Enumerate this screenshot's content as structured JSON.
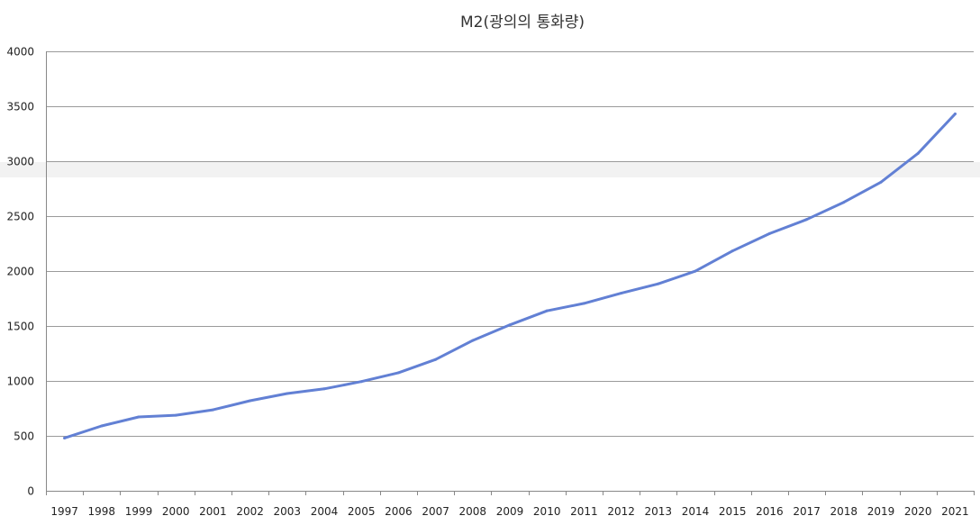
{
  "chart_data": {
    "type": "line",
    "title": "M2(광의의 통화량)",
    "xlabel": "",
    "ylabel": "",
    "ylim": [
      0,
      4000
    ],
    "yticks": [
      0,
      500,
      1000,
      1500,
      2000,
      2500,
      3000,
      3500,
      4000
    ],
    "grid": "horizontal",
    "x": [
      "1997",
      "1998",
      "1999",
      "2000",
      "2001",
      "2002",
      "2003",
      "2004",
      "2005",
      "2006",
      "2007",
      "2008",
      "2009",
      "2010",
      "2011",
      "2012",
      "2013",
      "2014",
      "2015",
      "2016",
      "2017",
      "2018",
      "2019",
      "2020",
      "2021"
    ],
    "series": [
      {
        "values": [
          480,
          590,
          672,
          688,
          737,
          820,
          885,
          928,
          994,
          1075,
          1195,
          1368,
          1510,
          1638,
          1706,
          1798,
          1884,
          1999,
          2183,
          2341,
          2470,
          2626,
          2809,
          3071,
          3430
        ],
        "color": "#6280d4"
      }
    ]
  }
}
